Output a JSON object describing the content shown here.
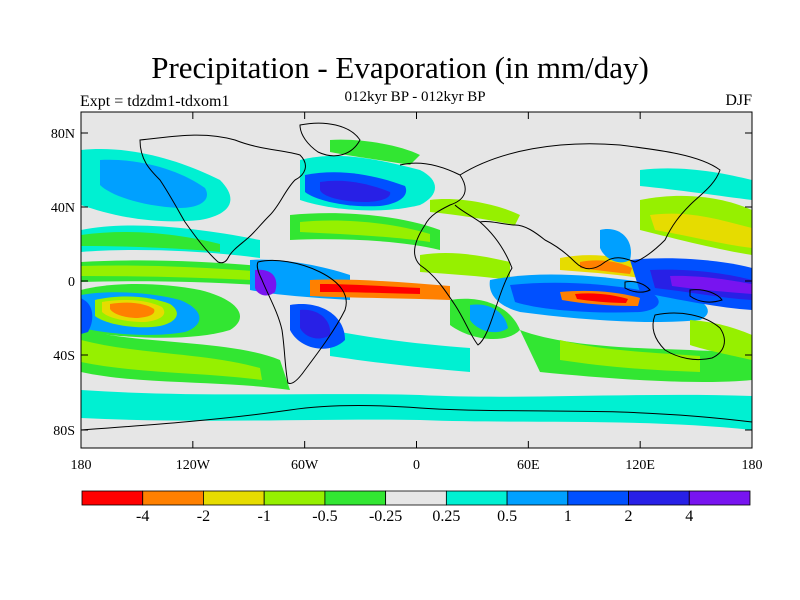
{
  "title": "Precipitation - Evaporation (in mm/day)",
  "subtitle": "012kyr BP - 012kyr BP",
  "experiment": "Expt = tdzdm1-tdxom1",
  "season": "DJF",
  "axes": {
    "lat_ticks": [
      "80N",
      "40N",
      "0",
      "40S",
      "80S"
    ],
    "lon_ticks": [
      "180",
      "120W",
      "60W",
      "0",
      "60E",
      "120E",
      "180"
    ]
  },
  "legend": {
    "colors": [
      "#ff0000",
      "#ff8000",
      "#e6dc00",
      "#96f000",
      "#32e632",
      "#e6e6e6",
      "#00f0d2",
      "#00a0ff",
      "#0050ff",
      "#2820e6",
      "#7814f0"
    ],
    "labels": [
      "-4",
      "-2",
      "-1",
      "-0.5",
      "-0.25",
      "0.25",
      "0.5",
      "1",
      "2",
      "4"
    ]
  },
  "colors": {
    "land": "#e6e6e6",
    "coastline": "#000000"
  }
}
